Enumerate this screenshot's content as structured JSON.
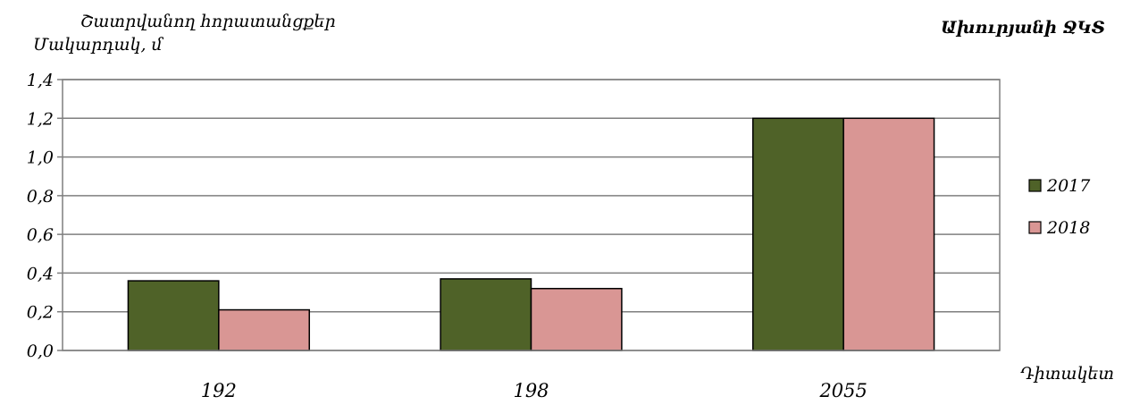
{
  "chart_data": {
    "type": "bar",
    "title": "Ախուրյանի ՋԿՏ",
    "subtitle": "Շատրվանող հորատանցքեր",
    "ylabel": "Մակարդակ, մ",
    "xlabel": "Դիտակետ",
    "categories": [
      "192",
      "198",
      "2055"
    ],
    "series": [
      {
        "name": "2017",
        "values": [
          0.36,
          0.37,
          1.2
        ],
        "color": "#4f6228"
      },
      {
        "name": "2018",
        "values": [
          0.21,
          0.32,
          1.2
        ],
        "color": "#d99694"
      }
    ],
    "ylim": [
      0,
      1.4
    ],
    "yticks": [
      "0,0",
      "0,2",
      "0,4",
      "0,6",
      "0,8",
      "1,0",
      "1,2",
      "1,4"
    ],
    "grid": true,
    "legend": "right"
  }
}
